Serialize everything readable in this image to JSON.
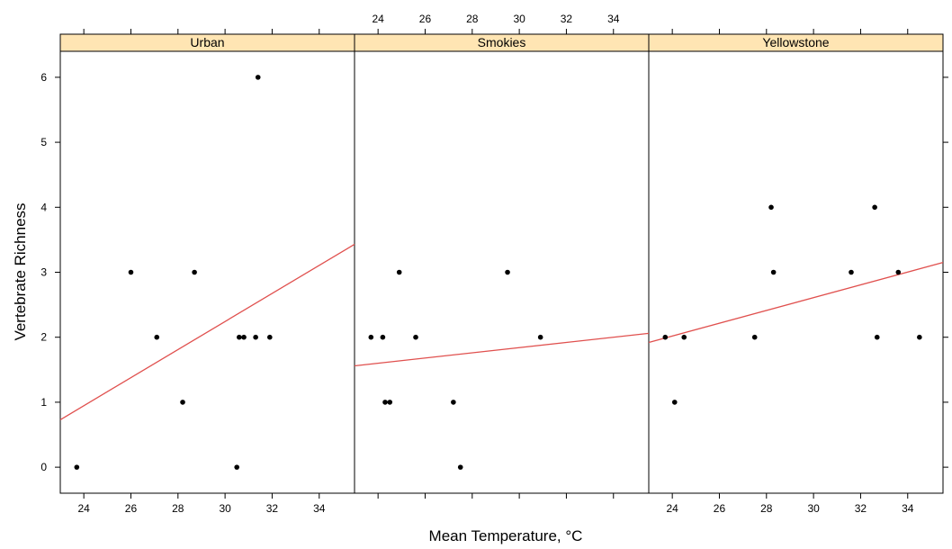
{
  "chart_data": {
    "type": "scatter",
    "xlabel": "Mean Temperature, °C",
    "ylabel": "Vertebrate Richness",
    "xlim": [
      23,
      35.5
    ],
    "ylim": [
      -0.4,
      6.4
    ],
    "xticks": [
      24,
      26,
      28,
      30,
      32,
      34
    ],
    "yticks": [
      0,
      1,
      2,
      3,
      4,
      5,
      6
    ],
    "grid": false,
    "point_color": "#000000",
    "strip_color": "#ffe5b3",
    "fit_color": "#e0504e",
    "panels": [
      {
        "name": "Urban",
        "points": [
          {
            "x": 23.7,
            "y": 0
          },
          {
            "x": 26.0,
            "y": 3
          },
          {
            "x": 27.1,
            "y": 2
          },
          {
            "x": 28.2,
            "y": 1
          },
          {
            "x": 28.7,
            "y": 3
          },
          {
            "x": 30.5,
            "y": 0
          },
          {
            "x": 30.6,
            "y": 2
          },
          {
            "x": 30.8,
            "y": 2
          },
          {
            "x": 31.3,
            "y": 2
          },
          {
            "x": 31.4,
            "y": 6
          },
          {
            "x": 31.9,
            "y": 2
          }
        ],
        "fit": [
          {
            "x": 23.0,
            "y": 0.73
          },
          {
            "x": 35.5,
            "y": 3.43
          }
        ]
      },
      {
        "name": "Smokies",
        "points": [
          {
            "x": 23.7,
            "y": 2
          },
          {
            "x": 24.2,
            "y": 2
          },
          {
            "x": 24.3,
            "y": 1
          },
          {
            "x": 24.5,
            "y": 1
          },
          {
            "x": 24.9,
            "y": 3
          },
          {
            "x": 25.6,
            "y": 2
          },
          {
            "x": 27.2,
            "y": 1
          },
          {
            "x": 27.5,
            "y": 0
          },
          {
            "x": 29.5,
            "y": 3
          },
          {
            "x": 30.9,
            "y": 2
          }
        ],
        "fit": [
          {
            "x": 23.0,
            "y": 1.56
          },
          {
            "x": 35.5,
            "y": 2.06
          }
        ]
      },
      {
        "name": "Yellowstone",
        "points": [
          {
            "x": 23.7,
            "y": 2
          },
          {
            "x": 24.1,
            "y": 1
          },
          {
            "x": 24.5,
            "y": 2
          },
          {
            "x": 27.5,
            "y": 2
          },
          {
            "x": 28.2,
            "y": 4
          },
          {
            "x": 28.3,
            "y": 3
          },
          {
            "x": 31.6,
            "y": 3
          },
          {
            "x": 32.6,
            "y": 4
          },
          {
            "x": 32.7,
            "y": 2
          },
          {
            "x": 33.6,
            "y": 3
          },
          {
            "x": 34.5,
            "y": 2
          }
        ],
        "fit": [
          {
            "x": 23.0,
            "y": 1.92
          },
          {
            "x": 35.5,
            "y": 3.15
          }
        ]
      }
    ]
  }
}
